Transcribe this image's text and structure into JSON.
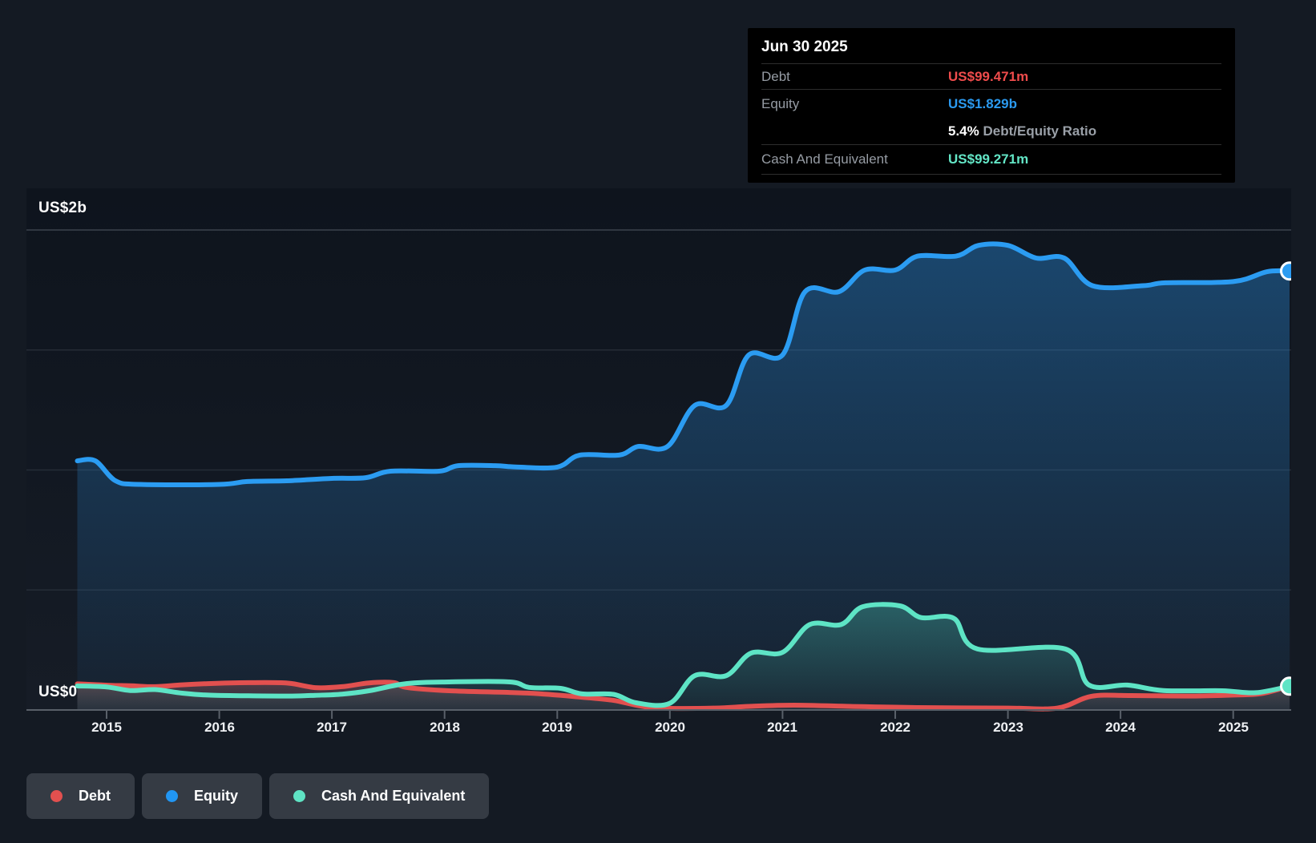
{
  "tooltip": {
    "date": "Jun 30 2025",
    "debt_label": "Debt",
    "debt_value": "US$99.471m",
    "equity_label": "Equity",
    "equity_value": "US$1.829b",
    "ratio_value": "5.4%",
    "ratio_label": "Debt/Equity Ratio",
    "cash_label": "Cash And Equivalent",
    "cash_value": "US$99.271m"
  },
  "y_axis": {
    "top_label": "US$2b",
    "zero_label": "US$0"
  },
  "x_axis": {
    "years": [
      2015,
      2016,
      2017,
      2018,
      2019,
      2020,
      2021,
      2022,
      2023,
      2024,
      2025
    ]
  },
  "legend": [
    {
      "label": "Debt",
      "color": "#e2504f"
    },
    {
      "label": "Equity",
      "color": "#2196f3"
    },
    {
      "label": "Cash And Equivalent",
      "color": "#5fe3c4"
    }
  ],
  "colors": {
    "background": "#141a23",
    "tooltip_bg": "#000000",
    "debt": "#e2504f",
    "equity": "#2b9cf2",
    "cash": "#5ee4c5",
    "gridline": "#252c36",
    "gridline_top": "#3c434d",
    "axis": "#596069"
  },
  "chart_data": {
    "type": "area",
    "title": "Debt to Equity History",
    "x_unit": "year",
    "x_range": [
      2014.74,
      2025.5
    ],
    "ylim": [
      0,
      2
    ],
    "y_unit": "US$ billions",
    "y_gridlines_b": [
      0,
      0.5,
      1,
      1.5,
      2
    ],
    "y_tick_labels": [
      "US$0",
      "US$2b"
    ],
    "legend_position": "bottom-left",
    "series": [
      {
        "name": "Equity",
        "color": "#2b9cf2",
        "points": [
          [
            2014.74,
            1.038
          ],
          [
            2014.9,
            1.038
          ],
          [
            2015.08,
            0.955
          ],
          [
            2015.3,
            0.94
          ],
          [
            2016.0,
            0.94
          ],
          [
            2016.25,
            0.952
          ],
          [
            2016.6,
            0.955
          ],
          [
            2017.0,
            0.965
          ],
          [
            2017.3,
            0.968
          ],
          [
            2017.52,
            0.995
          ],
          [
            2017.95,
            0.995
          ],
          [
            2018.12,
            1.018
          ],
          [
            2018.45,
            1.018
          ],
          [
            2018.65,
            1.012
          ],
          [
            2019.0,
            1.012
          ],
          [
            2019.2,
            1.062
          ],
          [
            2019.55,
            1.062
          ],
          [
            2019.72,
            1.098
          ],
          [
            2019.98,
            1.098
          ],
          [
            2020.22,
            1.269
          ],
          [
            2020.5,
            1.269
          ],
          [
            2020.7,
            1.479
          ],
          [
            2021.0,
            1.479
          ],
          [
            2021.2,
            1.743
          ],
          [
            2021.5,
            1.743
          ],
          [
            2021.73,
            1.833
          ],
          [
            2022.0,
            1.833
          ],
          [
            2022.2,
            1.891
          ],
          [
            2022.54,
            1.891
          ],
          [
            2022.74,
            1.936
          ],
          [
            2023.0,
            1.936
          ],
          [
            2023.25,
            1.883
          ],
          [
            2023.5,
            1.883
          ],
          [
            2023.75,
            1.768
          ],
          [
            2024.2,
            1.768
          ],
          [
            2024.4,
            1.78
          ],
          [
            2025.0,
            1.785
          ],
          [
            2025.3,
            1.826
          ],
          [
            2025.5,
            1.829
          ]
        ]
      },
      {
        "name": "Debt",
        "color": "#e2504f",
        "points": [
          [
            2014.74,
            0.109
          ],
          [
            2015.03,
            0.103
          ],
          [
            2015.21,
            0.101
          ],
          [
            2015.43,
            0.097
          ],
          [
            2015.67,
            0.105
          ],
          [
            2015.9,
            0.11
          ],
          [
            2016.26,
            0.114
          ],
          [
            2016.61,
            0.112
          ],
          [
            2016.85,
            0.093
          ],
          [
            2017.09,
            0.097
          ],
          [
            2017.33,
            0.113
          ],
          [
            2017.55,
            0.114
          ],
          [
            2017.66,
            0.094
          ],
          [
            2018.04,
            0.08
          ],
          [
            2018.75,
            0.07
          ],
          [
            2019.22,
            0.053
          ],
          [
            2019.5,
            0.04
          ],
          [
            2019.7,
            0.02
          ],
          [
            2019.9,
            0.008
          ],
          [
            2020.4,
            0.008
          ],
          [
            2020.7,
            0.015
          ],
          [
            2021.1,
            0.02
          ],
          [
            2021.6,
            0.015
          ],
          [
            2022.2,
            0.01
          ],
          [
            2023.0,
            0.008
          ],
          [
            2023.44,
            0.008
          ],
          [
            2023.74,
            0.057
          ],
          [
            2024.1,
            0.06
          ],
          [
            2024.6,
            0.058
          ],
          [
            2025.0,
            0.062
          ],
          [
            2025.25,
            0.068
          ],
          [
            2025.5,
            0.099
          ]
        ]
      },
      {
        "name": "Cash And Equivalent",
        "color": "#5ee4c5",
        "points": [
          [
            2014.74,
            0.1
          ],
          [
            2015.0,
            0.096
          ],
          [
            2015.21,
            0.081
          ],
          [
            2015.43,
            0.085
          ],
          [
            2015.67,
            0.07
          ],
          [
            2015.9,
            0.062
          ],
          [
            2016.26,
            0.059
          ],
          [
            2016.61,
            0.058
          ],
          [
            2016.85,
            0.061
          ],
          [
            2017.09,
            0.066
          ],
          [
            2017.33,
            0.08
          ],
          [
            2017.66,
            0.11
          ],
          [
            2018.04,
            0.117
          ],
          [
            2018.58,
            0.117
          ],
          [
            2018.75,
            0.094
          ],
          [
            2019.03,
            0.09
          ],
          [
            2019.22,
            0.067
          ],
          [
            2019.5,
            0.065
          ],
          [
            2019.7,
            0.03
          ],
          [
            2020.0,
            0.028
          ],
          [
            2020.22,
            0.143
          ],
          [
            2020.5,
            0.143
          ],
          [
            2020.72,
            0.237
          ],
          [
            2021.0,
            0.24
          ],
          [
            2021.24,
            0.356
          ],
          [
            2021.52,
            0.356
          ],
          [
            2021.71,
            0.43
          ],
          [
            2022.04,
            0.434
          ],
          [
            2022.23,
            0.385
          ],
          [
            2022.52,
            0.382
          ],
          [
            2022.73,
            0.254
          ],
          [
            2023.51,
            0.254
          ],
          [
            2023.72,
            0.104
          ],
          [
            2024.06,
            0.104
          ],
          [
            2024.38,
            0.081
          ],
          [
            2024.9,
            0.08
          ],
          [
            2025.2,
            0.072
          ],
          [
            2025.5,
            0.099
          ]
        ]
      }
    ],
    "end_markers": [
      {
        "series": "Equity",
        "year": 2025.5,
        "value": 1.829
      },
      {
        "series": "Cash And Equivalent",
        "year": 2025.5,
        "value": 0.099
      }
    ]
  }
}
